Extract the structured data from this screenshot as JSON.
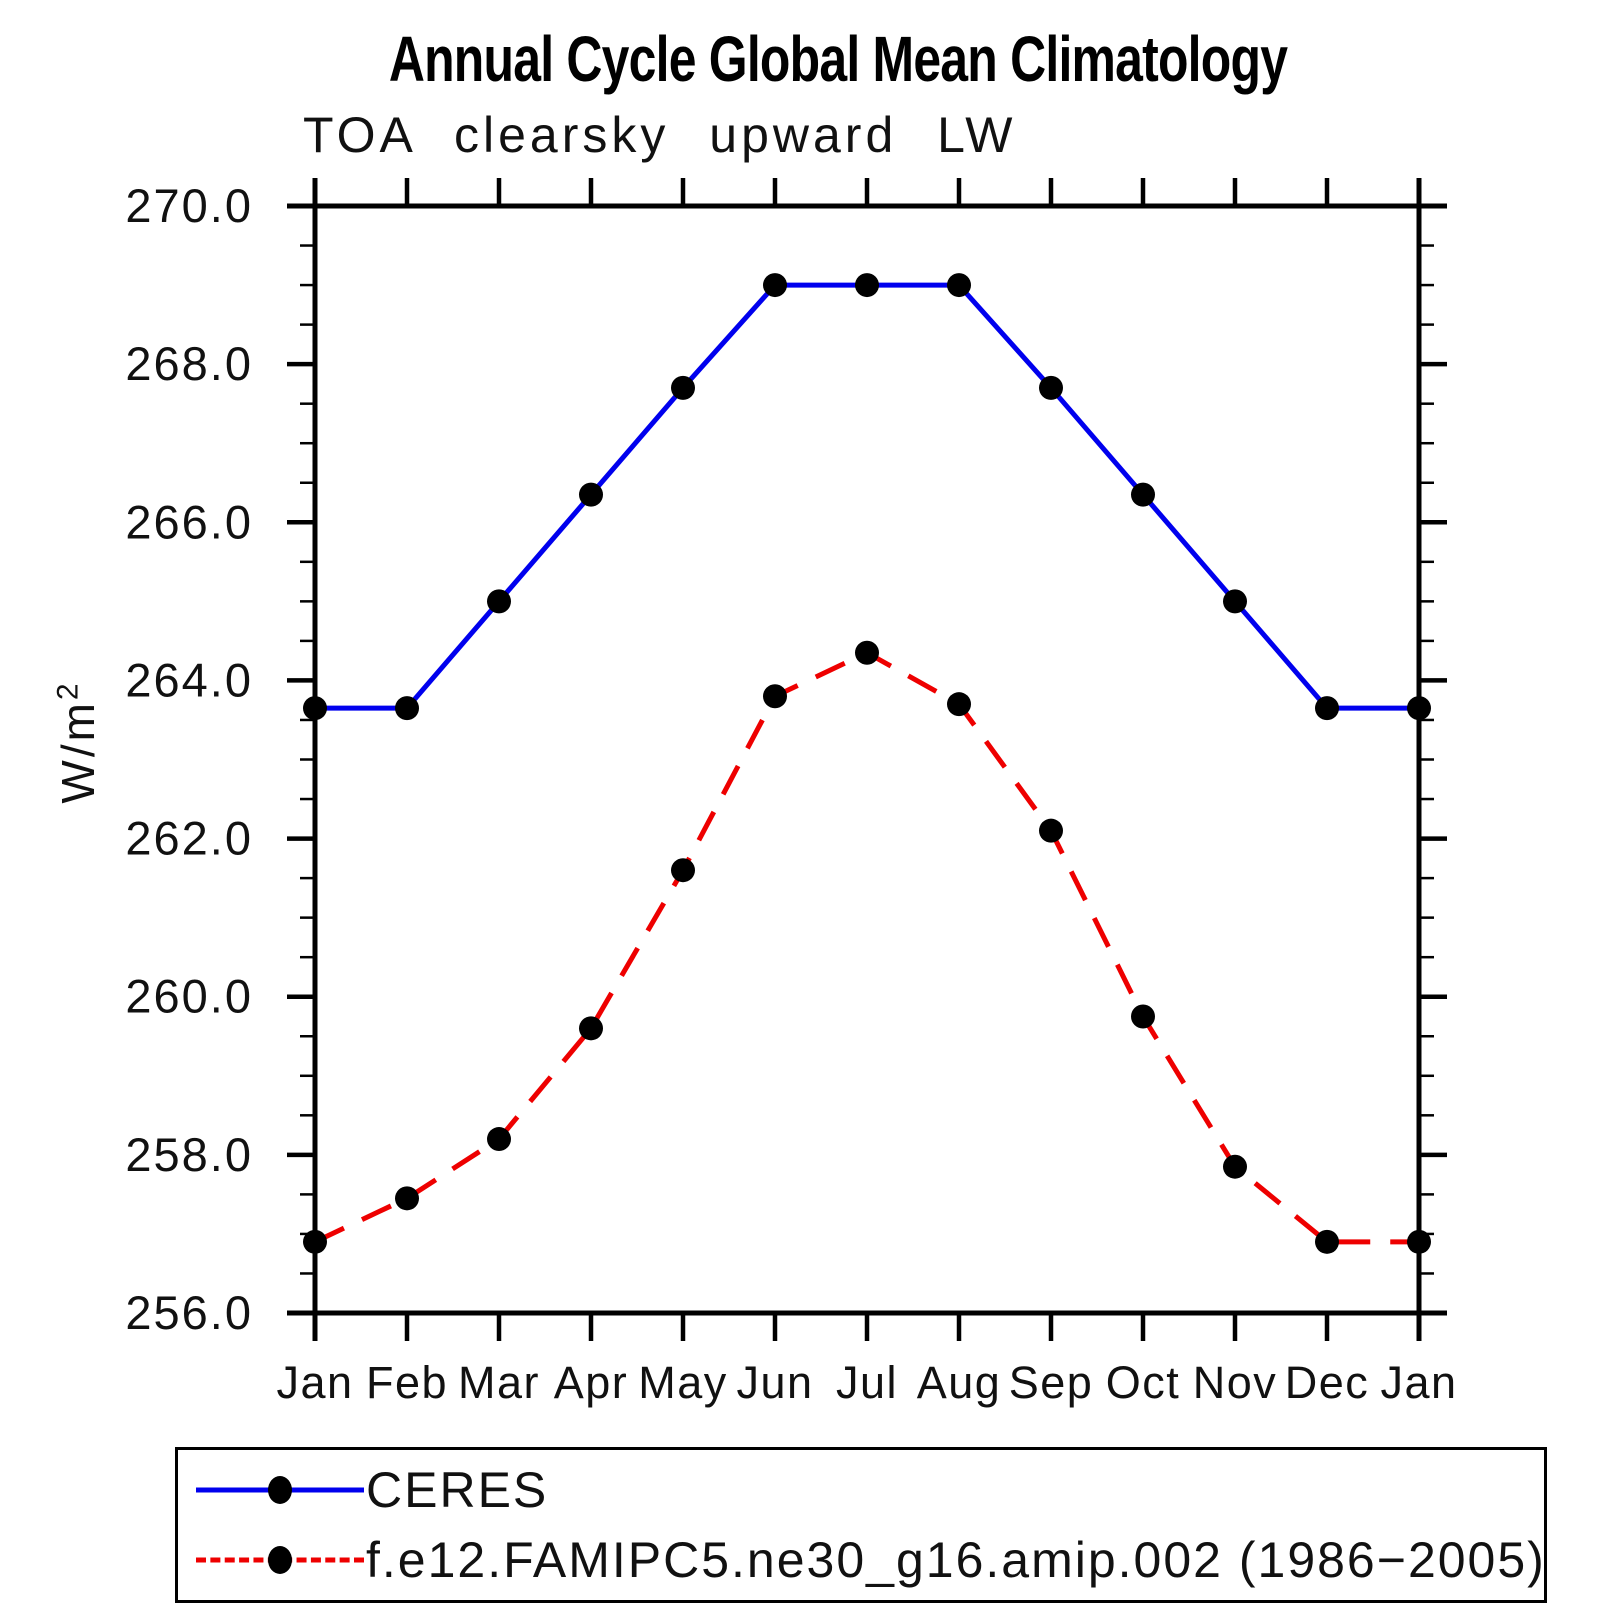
{
  "title": "Annual Cycle Global Mean Climatology",
  "subtitle": "TOA clearsky upward LW",
  "y_axis_label": "W/m",
  "y_axis_label_exponent": "2",
  "chart_data": {
    "type": "line",
    "categories": [
      "Jan",
      "Feb",
      "Mar",
      "Apr",
      "May",
      "Jun",
      "Jul",
      "Aug",
      "Sep",
      "Oct",
      "Nov",
      "Dec",
      "Jan"
    ],
    "series": [
      {
        "name": "CERES",
        "color": "#0000ee",
        "line_style": "solid",
        "marker": "filled-circle",
        "marker_color": "#000000",
        "values": [
          263.65,
          263.65,
          265.0,
          266.35,
          267.7,
          269.0,
          269.0,
          269.0,
          267.7,
          266.35,
          265.0,
          263.65,
          263.65
        ]
      },
      {
        "name": "f.e12.FAMIPC5.ne30_g16.amip.002 (1986−2005)",
        "color": "#ee0000",
        "line_style": "dashed",
        "marker": "filled-circle",
        "marker_color": "#000000",
        "values": [
          256.9,
          257.45,
          258.2,
          259.6,
          261.6,
          263.8,
          264.35,
          263.7,
          262.1,
          259.75,
          257.85,
          256.9,
          256.9
        ]
      }
    ],
    "ylabel": "W/m²",
    "xlabel": "",
    "ylim": [
      256.0,
      270.0
    ],
    "ytick_major_interval": 2.0,
    "ytick_minor_interval": 0.5,
    "ytick_labels": [
      "256.0",
      "258.0",
      "260.0",
      "262.0",
      "264.0",
      "266.0",
      "268.0",
      "270.0"
    ],
    "grid": false,
    "legend_position": "bottom",
    "axis_color": "#000000"
  }
}
